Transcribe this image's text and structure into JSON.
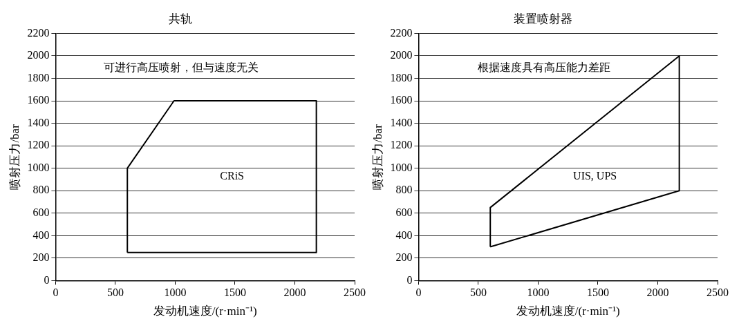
{
  "chart_data": [
    {
      "type": "line",
      "title": "共轨",
      "xlabel": "发动机速度/(r·min⁻¹)",
      "ylabel": "喷射压力/bar",
      "xlim": [
        0,
        2500
      ],
      "xticks": [
        0,
        500,
        1000,
        1500,
        2000,
        2500
      ],
      "ylim": [
        0,
        2200
      ],
      "yticks": [
        0,
        200,
        400,
        600,
        800,
        1000,
        1200,
        1400,
        1600,
        1800,
        2000,
        2200
      ],
      "grid": "y",
      "legend": false,
      "marker": "none",
      "line_style": "solid",
      "series": [
        {
          "color": "#000000",
          "x": [
            600,
            600,
            990,
            2180,
            2180
          ],
          "values": [
            250,
            1000,
            1600,
            1600,
            250
          ]
        },
        {
          "color": "#000000",
          "x": [
            600,
            2180
          ],
          "values": [
            250,
            250
          ]
        }
      ],
      "annotations": [
        "可进行高压喷射，但与速度无关",
        "CRiS"
      ]
    },
    {
      "type": "line",
      "title": "装置喷射器",
      "xlabel": "发动机速度/(r·min⁻¹)",
      "ylabel": "喷射压力/bar",
      "xlim": [
        0,
        2500
      ],
      "xticks": [
        0,
        500,
        1000,
        1500,
        2000,
        2500
      ],
      "ylim": [
        0,
        2200
      ],
      "yticks": [
        0,
        200,
        400,
        600,
        800,
        1000,
        1200,
        1400,
        1600,
        1800,
        2000,
        2200
      ],
      "grid": "y",
      "legend": false,
      "marker": "none",
      "line_style": "solid",
      "series": [
        {
          "color": "#000000",
          "x": [
            600,
            600,
            2180,
            2180
          ],
          "values": [
            300,
            650,
            2000,
            800
          ]
        },
        {
          "color": "#000000",
          "x": [
            600,
            2180
          ],
          "values": [
            300,
            800
          ]
        }
      ],
      "annotations": [
        "根据速度具有高压能力差距",
        "UIS, UPS"
      ]
    }
  ]
}
